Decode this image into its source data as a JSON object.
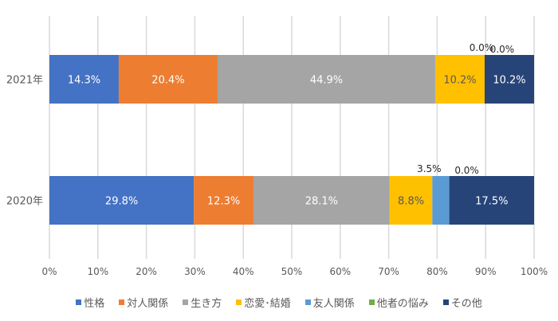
{
  "chart_data": {
    "type": "bar",
    "orientation": "horizontal",
    "stacked": "percent",
    "categories": [
      "2021年",
      "2020年"
    ],
    "series": [
      {
        "name": "性格",
        "color": "#4472C4",
        "values": [
          14.3,
          29.8
        ],
        "labels": [
          "14.3%",
          "29.8%"
        ]
      },
      {
        "name": "対人関係",
        "color": "#ED7D31",
        "values": [
          20.4,
          12.3
        ],
        "labels": [
          "20.4%",
          "12.3%"
        ]
      },
      {
        "name": "生き方",
        "color": "#A5A5A5",
        "values": [
          44.9,
          28.1
        ],
        "labels": [
          "44.9%",
          "28.1%"
        ]
      },
      {
        "name": "恋愛･結婚",
        "color": "#FFC000",
        "values": [
          10.2,
          8.8
        ],
        "labels": [
          "10.2%",
          "8.8%"
        ]
      },
      {
        "name": "友人関係",
        "color": "#5B9BD5",
        "values": [
          0.0,
          3.5
        ],
        "labels": [
          "0.0%",
          "3.5%"
        ]
      },
      {
        "name": "他者の悩み",
        "color": "#70AD47",
        "values": [
          0.0,
          0.0
        ],
        "labels": [
          "0.0%",
          "0.0%"
        ]
      },
      {
        "name": "その他",
        "color": "#264478",
        "values": [
          10.2,
          17.5
        ],
        "labels": [
          "10.2%",
          "17.5%"
        ]
      }
    ],
    "xticks": [
      "0%",
      "10%",
      "20%",
      "30%",
      "40%",
      "50%",
      "60%",
      "70%",
      "80%",
      "90%",
      "100%"
    ],
    "xlim": [
      0,
      100
    ],
    "grid": true,
    "legend": "bottom",
    "title": "",
    "xlabel": "",
    "ylabel": ""
  }
}
